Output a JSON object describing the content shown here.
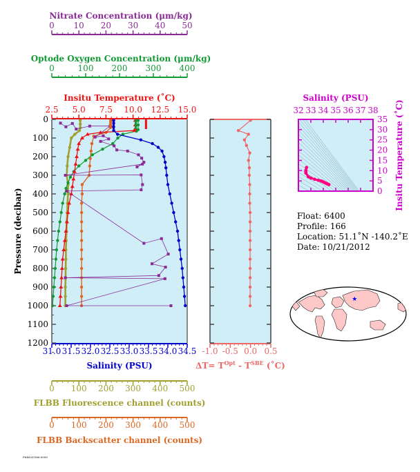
{
  "chart_data": {
    "type": "line",
    "colors": {
      "salinity": "#0000cc",
      "temperature": "#ee1111",
      "oxygen": "#119933",
      "nitrate": "#8a2a96",
      "fluorescence": "#a0a030",
      "backscatter": "#dd6622",
      "delta": "#ee6666",
      "ts": "#ff0080",
      "panel_bg": "#d0eef8",
      "land": "#ffc8c8"
    },
    "pressure_axis": {
      "label": "Pressure (decibar)",
      "range": [
        0,
        1200
      ],
      "ticks": [
        "0",
        "100",
        "200",
        "300",
        "400",
        "500",
        "600",
        "700",
        "800",
        "900",
        "1000",
        "1100",
        "1200"
      ]
    },
    "axes": {
      "nitrate": {
        "label": "Nitrate Concentration (μm/kg)",
        "range": [
          0,
          50
        ],
        "ticks": [
          "0",
          "10",
          "20",
          "30",
          "40",
          "50"
        ]
      },
      "oxygen": {
        "label": "Optode Oxygen Concentration (μm/kg)",
        "range": [
          0,
          400
        ],
        "ticks": [
          "0",
          "100",
          "200",
          "300",
          "400"
        ]
      },
      "temperature": {
        "label": "Insitu Temperature (˚C)",
        "range": [
          2.5,
          15.0
        ],
        "ticks": [
          "2.5",
          "5.0",
          "7.5",
          "10.0",
          "12.5",
          "15.0"
        ]
      },
      "salinity": {
        "label": "Salinity (PSU)",
        "range": [
          31.0,
          34.5
        ],
        "ticks": [
          "31.0",
          "31.5",
          "32.0",
          "32.5",
          "33.0",
          "33.5",
          "34.0",
          "34.5"
        ]
      },
      "fluorescence": {
        "label": "FLBB Fluorescence channel (counts)",
        "range": [
          0,
          500
        ],
        "ticks": [
          "0",
          "100",
          "200",
          "300",
          "400",
          "500"
        ]
      },
      "backscatter": {
        "label": "FLBB Backscatter channel (counts)",
        "range": [
          0,
          500
        ],
        "ticks": [
          "0",
          "100",
          "200",
          "300",
          "400",
          "500"
        ]
      },
      "delta": {
        "label_main": "ΔT= T",
        "label_sup1": "Opt",
        "label_mid": " - T",
        "label_sup2": "SBE",
        "label_end": " (˚C)",
        "range": [
          -1.0,
          0.5
        ],
        "ticks": [
          "-1.0",
          "-0.5",
          "0.0",
          "0.5"
        ]
      },
      "ts_salinity": {
        "label": "Salinity (PSU)",
        "range": [
          32,
          38
        ],
        "ticks": [
          "32",
          "33",
          "34",
          "35",
          "36",
          "37",
          "38"
        ]
      },
      "ts_temperature": {
        "label": "Insitu Temperature (˚C)",
        "range": [
          0,
          35
        ],
        "ticks": [
          "0",
          "5",
          "10",
          "15",
          "20",
          "25",
          "30",
          "35"
        ]
      }
    },
    "series": {
      "salinity": [
        [
          32.6,
          5
        ],
        [
          32.6,
          20
        ],
        [
          32.6,
          40
        ],
        [
          32.6,
          60
        ],
        [
          32.7,
          80
        ],
        [
          33.3,
          110
        ],
        [
          33.6,
          130
        ],
        [
          33.75,
          150
        ],
        [
          33.85,
          170
        ],
        [
          33.9,
          200
        ],
        [
          33.93,
          230
        ],
        [
          33.95,
          260
        ],
        [
          33.97,
          300
        ],
        [
          34.0,
          350
        ],
        [
          34.05,
          400
        ],
        [
          34.1,
          450
        ],
        [
          34.15,
          500
        ],
        [
          34.2,
          550
        ],
        [
          34.25,
          600
        ],
        [
          34.28,
          650
        ],
        [
          34.31,
          700
        ],
        [
          34.34,
          750
        ],
        [
          34.37,
          800
        ],
        [
          34.39,
          850
        ],
        [
          34.41,
          900
        ],
        [
          34.43,
          950
        ],
        [
          34.45,
          1000
        ]
      ],
      "temperature": [
        [
          10.2,
          5
        ],
        [
          10.2,
          30
        ],
        [
          10.2,
          50
        ],
        [
          10.1,
          60
        ],
        [
          7.0,
          70
        ],
        [
          5.8,
          80
        ],
        [
          5.3,
          100
        ],
        [
          5.0,
          130
        ],
        [
          4.9,
          160
        ],
        [
          4.8,
          200
        ],
        [
          4.7,
          240
        ],
        [
          4.6,
          280
        ],
        [
          4.5,
          320
        ],
        [
          4.4,
          360
        ],
        [
          4.3,
          400
        ],
        [
          4.1,
          450
        ],
        [
          4.0,
          500
        ],
        [
          3.9,
          550
        ],
        [
          3.8,
          600
        ],
        [
          3.7,
          650
        ],
        [
          3.6,
          700
        ],
        [
          3.5,
          750
        ],
        [
          3.45,
          800
        ],
        [
          3.4,
          850
        ],
        [
          3.35,
          900
        ],
        [
          3.3,
          950
        ],
        [
          3.25,
          1000
        ]
      ],
      "oxygen": [
        [
          255,
          5
        ],
        [
          255,
          30
        ],
        [
          255,
          55
        ],
        [
          250,
          63
        ],
        [
          210,
          80
        ],
        [
          195,
          100
        ],
        [
          180,
          130
        ],
        [
          150,
          160
        ],
        [
          120,
          190
        ],
        [
          100,
          220
        ],
        [
          80,
          250
        ],
        [
          65,
          280
        ],
        [
          55,
          310
        ],
        [
          48,
          340
        ],
        [
          42,
          370
        ],
        [
          38,
          400
        ],
        [
          32,
          450
        ],
        [
          28,
          500
        ],
        [
          24,
          550
        ],
        [
          20,
          600
        ],
        [
          17,
          650
        ],
        [
          14,
          700
        ],
        [
          12,
          750
        ],
        [
          10,
          800
        ],
        [
          8,
          850
        ],
        [
          6,
          900
        ],
        [
          4,
          950
        ],
        [
          2,
          1000
        ]
      ],
      "nitrate": [
        [
          3.2,
          20
        ],
        [
          5.2,
          40
        ],
        [
          7.6,
          22
        ],
        [
          9.0,
          52
        ],
        [
          14.0,
          36
        ],
        [
          21.5,
          36
        ],
        [
          16.0,
          95
        ],
        [
          19.0,
          88
        ],
        [
          21.0,
          105
        ],
        [
          18.0,
          118
        ],
        [
          23.0,
          142
        ],
        [
          24.0,
          164
        ],
        [
          28.0,
          170
        ],
        [
          32.0,
          190
        ],
        [
          33.2,
          208
        ],
        [
          34.0,
          230
        ],
        [
          31.5,
          255
        ],
        [
          33.5,
          240
        ],
        [
          5.0,
          300
        ],
        [
          33.0,
          298
        ],
        [
          33.5,
          350
        ],
        [
          33.0,
          378
        ],
        [
          5.5,
          385
        ],
        [
          34.0,
          665
        ],
        [
          40.5,
          640
        ],
        [
          43.0,
          723
        ],
        [
          37.0,
          775
        ],
        [
          42.0,
          793
        ],
        [
          39.5,
          838
        ],
        [
          5.0,
          850
        ],
        [
          41.8,
          855
        ],
        [
          5.5,
          1000
        ],
        [
          44.0,
          1000
        ]
      ],
      "fluorescence": [
        [
          105,
          5
        ],
        [
          105,
          25
        ],
        [
          105,
          45
        ],
        [
          102,
          60
        ],
        [
          85,
          80
        ],
        [
          72,
          100
        ],
        [
          66,
          150
        ],
        [
          60,
          200
        ],
        [
          57,
          250
        ],
        [
          55,
          300
        ],
        [
          60,
          350
        ],
        [
          60,
          400
        ],
        [
          58,
          450
        ],
        [
          57,
          500
        ],
        [
          55,
          550
        ],
        [
          54,
          600
        ],
        [
          53,
          650
        ],
        [
          52,
          700
        ],
        [
          52,
          750
        ],
        [
          51,
          800
        ],
        [
          51,
          850
        ],
        [
          50,
          900
        ],
        [
          50,
          950
        ],
        [
          50,
          1000
        ]
      ],
      "backscatter": [
        [
          220,
          5
        ],
        [
          220,
          40
        ],
        [
          200,
          70
        ],
        [
          155,
          90
        ],
        [
          148,
          130
        ],
        [
          145,
          170
        ],
        [
          142,
          210
        ],
        [
          140,
          250
        ],
        [
          138,
          300
        ],
        [
          112,
          350
        ],
        [
          112,
          400
        ],
        [
          110,
          450
        ],
        [
          110,
          500
        ],
        [
          110,
          550
        ],
        [
          110,
          600
        ],
        [
          110,
          650
        ],
        [
          110,
          700
        ],
        [
          110,
          750
        ],
        [
          110,
          800
        ],
        [
          110,
          850
        ],
        [
          110,
          900
        ],
        [
          110,
          950
        ],
        [
          110,
          1000
        ]
      ],
      "delta": [
        [
          0.0,
          5
        ],
        [
          -0.3,
          60
        ],
        [
          -0.05,
          80
        ],
        [
          -0.15,
          110
        ],
        [
          -0.1,
          140
        ],
        [
          -0.02,
          180
        ],
        [
          -0.05,
          220
        ],
        [
          -0.03,
          260
        ],
        [
          -0.03,
          300
        ],
        [
          -0.02,
          350
        ],
        [
          -0.02,
          400
        ],
        [
          -0.02,
          450
        ],
        [
          -0.01,
          500
        ],
        [
          -0.01,
          550
        ],
        [
          -0.01,
          600
        ],
        [
          -0.01,
          650
        ],
        [
          -0.01,
          700
        ],
        [
          -0.01,
          750
        ],
        [
          -0.01,
          800
        ],
        [
          -0.01,
          850
        ],
        [
          -0.01,
          900
        ],
        [
          -0.01,
          950
        ],
        [
          -0.01,
          1000
        ]
      ],
      "ts": [
        [
          32.6,
          10.2
        ],
        [
          32.6,
          9.5
        ],
        [
          32.6,
          8.8
        ],
        [
          32.8,
          7.0
        ],
        [
          33.0,
          6.4
        ],
        [
          33.3,
          5.8
        ],
        [
          33.6,
          5.3
        ],
        [
          33.8,
          5.0
        ],
        [
          33.9,
          4.8
        ],
        [
          34.0,
          4.5
        ],
        [
          34.1,
          4.2
        ],
        [
          34.2,
          3.9
        ],
        [
          34.3,
          3.6
        ],
        [
          34.4,
          3.3
        ],
        [
          34.45,
          3.2
        ],
        [
          32.65,
          11.5
        ]
      ]
    }
  },
  "float_info": {
    "float": "Float:  6400",
    "profile": "Profile:  166",
    "location": "Location:  51.1˚N  -140.2˚E",
    "date": "Date:  10/21/2012"
  },
  "map": {
    "float_marker": {
      "lon": -140.2,
      "lat": 51.1
    }
  },
  "footer_text": "F6400/0166.0000"
}
